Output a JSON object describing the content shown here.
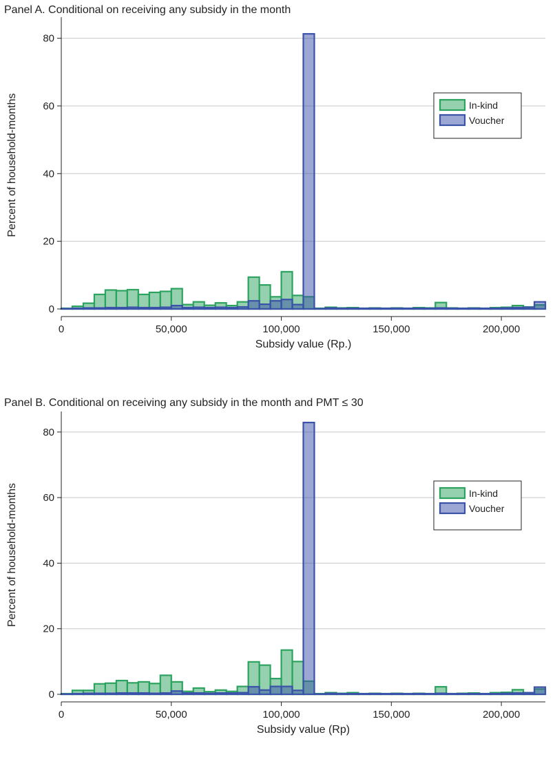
{
  "chart_data": [
    {
      "type": "bar",
      "title": "Panel A. Conditional on receiving any subsidy in the month",
      "xlabel": "Subsidy value (Rp.)",
      "ylabel": "Percent of household-months",
      "xlim": [
        0,
        220000
      ],
      "ylim": [
        0,
        85
      ],
      "bin_width": 5000,
      "xticks": [
        0,
        50000,
        100000,
        150000,
        200000
      ],
      "xtick_labels": [
        "0",
        "50,000",
        "100,000",
        "150,000",
        "200,000"
      ],
      "yticks": [
        0,
        20,
        40,
        60,
        80
      ],
      "ytick_labels": [
        "0",
        "20",
        "40",
        "60",
        "80"
      ],
      "grid": true,
      "legend_position": "top-right",
      "colors": {
        "In-kind": "#2ca25f",
        "Voucher": "#3a52a8"
      },
      "series": [
        {
          "name": "In-kind",
          "bin_starts": [
            0,
            5000,
            10000,
            15000,
            20000,
            25000,
            30000,
            35000,
            40000,
            45000,
            50000,
            55000,
            60000,
            65000,
            70000,
            75000,
            80000,
            85000,
            90000,
            95000,
            100000,
            105000,
            110000,
            115000,
            120000,
            125000,
            130000,
            135000,
            140000,
            145000,
            150000,
            155000,
            160000,
            165000,
            170000,
            175000,
            180000,
            185000,
            190000,
            195000,
            200000,
            205000,
            210000,
            215000
          ],
          "values": [
            0.2,
            0.8,
            1.7,
            4.3,
            5.6,
            5.4,
            5.7,
            4.3,
            4.9,
            5.2,
            6.0,
            1.3,
            2.1,
            1.1,
            1.8,
            1.0,
            2.1,
            9.4,
            7.1,
            3.6,
            11.0,
            4.0,
            3.6,
            0.2,
            0.5,
            0.3,
            0.4,
            0.2,
            0.3,
            0.2,
            0.3,
            0.2,
            0.4,
            0.3,
            1.9,
            0.3,
            0.2,
            0.3,
            0.2,
            0.4,
            0.5,
            1.0,
            0.6,
            1.2
          ]
        },
        {
          "name": "Voucher",
          "bin_starts": [
            0,
            5000,
            10000,
            15000,
            20000,
            25000,
            30000,
            35000,
            40000,
            45000,
            50000,
            55000,
            60000,
            65000,
            70000,
            75000,
            80000,
            85000,
            90000,
            95000,
            100000,
            105000,
            110000,
            115000,
            120000,
            125000,
            130000,
            135000,
            140000,
            145000,
            150000,
            155000,
            160000,
            165000,
            170000,
            175000,
            180000,
            185000,
            190000,
            195000,
            200000,
            205000,
            210000,
            215000
          ],
          "values": [
            0.1,
            0.2,
            0.3,
            0.3,
            0.4,
            0.4,
            0.5,
            0.4,
            0.4,
            0.5,
            1.0,
            0.4,
            0.5,
            0.4,
            0.5,
            0.4,
            0.6,
            2.4,
            1.4,
            2.4,
            2.8,
            1.3,
            81.3,
            0.1,
            0.3,
            0.2,
            0.2,
            0.2,
            0.2,
            0.2,
            0.2,
            0.2,
            0.2,
            0.2,
            0.3,
            0.2,
            0.2,
            0.2,
            0.2,
            0.2,
            0.3,
            0.4,
            0.5,
            2.1
          ]
        }
      ]
    },
    {
      "type": "bar",
      "title": "Panel B. Conditional on receiving any subsidy in the month and PMT ≤ 30",
      "xlabel": "Subsidy value (Rp)",
      "ylabel": "Percent of household-months",
      "xlim": [
        0,
        220000
      ],
      "ylim": [
        0,
        85
      ],
      "bin_width": 5000,
      "xticks": [
        0,
        50000,
        100000,
        150000,
        200000
      ],
      "xtick_labels": [
        "0",
        "50,000",
        "100,000",
        "150,000",
        "200,000"
      ],
      "yticks": [
        0,
        20,
        40,
        60,
        80
      ],
      "ytick_labels": [
        "0",
        "20",
        "40",
        "60",
        "80"
      ],
      "grid": true,
      "legend_position": "top-right",
      "colors": {
        "In-kind": "#2ca25f",
        "Voucher": "#3a52a8"
      },
      "series": [
        {
          "name": "In-kind",
          "bin_starts": [
            0,
            5000,
            10000,
            15000,
            20000,
            25000,
            30000,
            35000,
            40000,
            45000,
            50000,
            55000,
            60000,
            65000,
            70000,
            75000,
            80000,
            85000,
            90000,
            95000,
            100000,
            105000,
            110000,
            115000,
            120000,
            125000,
            130000,
            135000,
            140000,
            145000,
            150000,
            155000,
            160000,
            165000,
            170000,
            175000,
            180000,
            185000,
            190000,
            195000,
            200000,
            205000,
            210000,
            215000
          ],
          "values": [
            0.2,
            1.2,
            1.2,
            3.2,
            3.4,
            4.2,
            3.5,
            3.8,
            3.3,
            5.8,
            3.8,
            0.9,
            1.9,
            0.8,
            1.3,
            0.9,
            2.4,
            9.9,
            8.9,
            4.8,
            13.5,
            10.0,
            4.0,
            0.2,
            0.5,
            0.3,
            0.5,
            0.2,
            0.3,
            0.2,
            0.3,
            0.2,
            0.3,
            0.2,
            2.3,
            0.2,
            0.3,
            0.4,
            0.2,
            0.5,
            0.6,
            1.4,
            0.5,
            1.6
          ]
        },
        {
          "name": "Voucher",
          "bin_starts": [
            0,
            5000,
            10000,
            15000,
            20000,
            25000,
            30000,
            35000,
            40000,
            45000,
            50000,
            55000,
            60000,
            65000,
            70000,
            75000,
            80000,
            85000,
            90000,
            95000,
            100000,
            105000,
            110000,
            115000,
            120000,
            125000,
            130000,
            135000,
            140000,
            145000,
            150000,
            155000,
            160000,
            165000,
            170000,
            175000,
            180000,
            185000,
            190000,
            195000,
            200000,
            205000,
            210000,
            215000
          ],
          "values": [
            0.1,
            0.2,
            0.3,
            0.3,
            0.3,
            0.4,
            0.4,
            0.4,
            0.3,
            0.4,
            1.0,
            0.4,
            0.4,
            0.3,
            0.4,
            0.4,
            0.5,
            2.3,
            1.3,
            2.4,
            2.4,
            1.2,
            82.9,
            0.1,
            0.3,
            0.2,
            0.2,
            0.2,
            0.2,
            0.2,
            0.2,
            0.2,
            0.2,
            0.2,
            0.3,
            0.2,
            0.2,
            0.2,
            0.2,
            0.2,
            0.3,
            0.4,
            0.5,
            2.2
          ]
        }
      ]
    }
  ]
}
